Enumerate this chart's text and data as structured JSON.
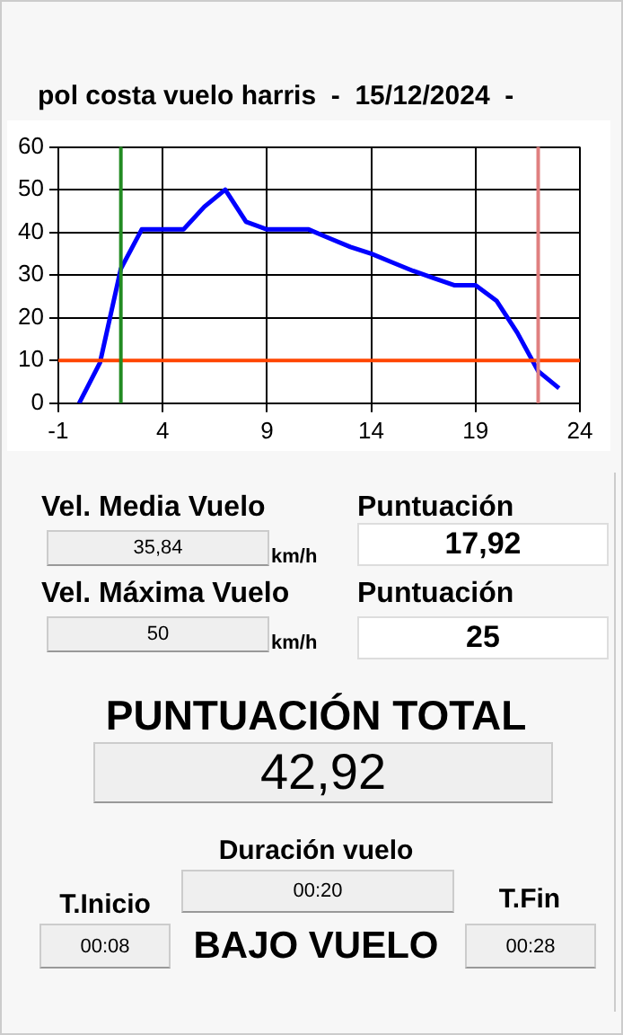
{
  "chart_data": {
    "type": "line",
    "title": "pol costa vuelo harris  -  15/12/2024  -",
    "x": [
      0,
      1,
      2,
      3,
      4,
      5,
      6,
      7,
      8,
      9,
      10,
      11,
      12,
      13,
      14,
      15,
      16,
      17,
      18,
      19,
      20,
      21,
      22,
      23
    ],
    "series": [
      {
        "color": "#0000ff",
        "values": [
          0,
          9.5,
          31.5,
          40.7,
          40.7,
          40.7,
          46,
          50,
          42.5,
          40.7,
          40.7,
          40.7,
          38.6,
          36.6,
          35,
          33,
          31,
          29.3,
          27.6,
          27.6,
          24,
          16.5,
          7.5,
          3.5
        ]
      }
    ],
    "xlim": [
      -1,
      24
    ],
    "xticks": [
      -1,
      4,
      9,
      14,
      19,
      24
    ],
    "ylim": [
      0,
      60
    ],
    "yticks": [
      0,
      10,
      20,
      30,
      40,
      50,
      60
    ],
    "grid": true,
    "marker": "none",
    "line_style": "solid",
    "legend": false,
    "ref_lines": [
      {
        "axis": "y",
        "value": 10,
        "color": "#ff4500"
      },
      {
        "axis": "x",
        "value": 2,
        "color": "#228b22"
      },
      {
        "axis": "x",
        "value": 22,
        "color": "#e08080"
      }
    ],
    "annotations": [
      "Vel. Media Vuelo",
      "35,84",
      "km/h",
      "Puntuación",
      "17,92",
      "Vel. Máxima Vuelo",
      "50",
      "km/h",
      "Puntuación",
      "25",
      "PUNTUACIÓN TOTAL",
      "42,92",
      "Duración vuelo",
      "00:20",
      "T.Inicio",
      "00:08",
      "BAJO VUELO",
      "T.Fin",
      "00:28"
    ]
  }
}
